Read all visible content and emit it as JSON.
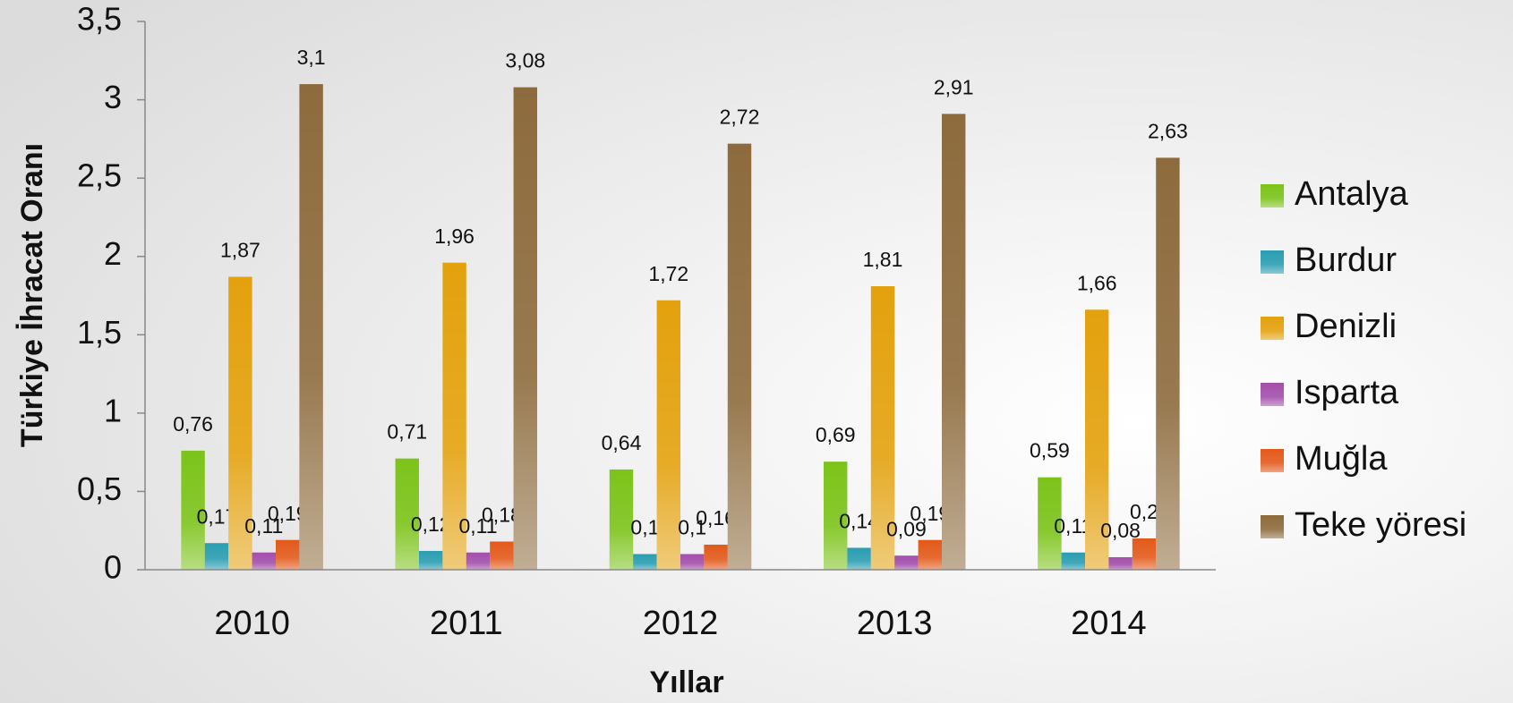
{
  "chart_data": {
    "type": "bar",
    "x_label": "Yıllar",
    "y_label": "Türkiye İhracat Oranı",
    "categories": [
      "2010",
      "2011",
      "2012",
      "2013",
      "2014"
    ],
    "series": [
      {
        "name": "Antalya",
        "color": "#7cc31a",
        "values": [
          0.76,
          0.71,
          0.64,
          0.69,
          0.59
        ],
        "value_labels": [
          "0,76",
          "0,71",
          "0,64",
          "0,69",
          "0,59"
        ]
      },
      {
        "name": "Burdur",
        "color": "#2b9db2",
        "values": [
          0.17,
          0.12,
          0.1,
          0.14,
          0.11
        ],
        "value_labels": [
          "0,17",
          "0,12",
          "0,1",
          "0,14",
          "0,11"
        ]
      },
      {
        "name": "Denizli",
        "color": "#e3a10d",
        "values": [
          1.87,
          1.96,
          1.72,
          1.81,
          1.66
        ],
        "value_labels": [
          "1,87",
          "1,96",
          "1,72",
          "1,81",
          "1,66"
        ]
      },
      {
        "name": "Isparta",
        "color": "#a34fab",
        "values": [
          0.11,
          0.11,
          0.1,
          0.09,
          0.08
        ],
        "value_labels": [
          "0,11",
          "0,11",
          "0,1",
          "0,09",
          "0,08"
        ]
      },
      {
        "name": "Muğla",
        "color": "#e35a1b",
        "values": [
          0.19,
          0.18,
          0.16,
          0.19,
          0.2
        ],
        "value_labels": [
          "0,19",
          "0,18",
          "0,16",
          "0,19",
          "0,2"
        ]
      },
      {
        "name": "Teke yöresi",
        "color": "#8d6b3d",
        "values": [
          3.1,
          3.08,
          2.72,
          2.91,
          2.63
        ],
        "value_labels": [
          "3,1",
          "3,08",
          "2,72",
          "2,91",
          "2,63"
        ]
      }
    ],
    "ylim": [
      0,
      3.5
    ],
    "yticks": [
      0,
      {
        "value": 0.5,
        "label": "0,5"
      },
      1,
      {
        "value": 1.5,
        "label": "1,5"
      },
      2,
      {
        "value": 2.5,
        "label": "2,5"
      },
      3,
      {
        "value": 3.5,
        "label": "3,5"
      }
    ],
    "grid": false,
    "legend": "right"
  }
}
